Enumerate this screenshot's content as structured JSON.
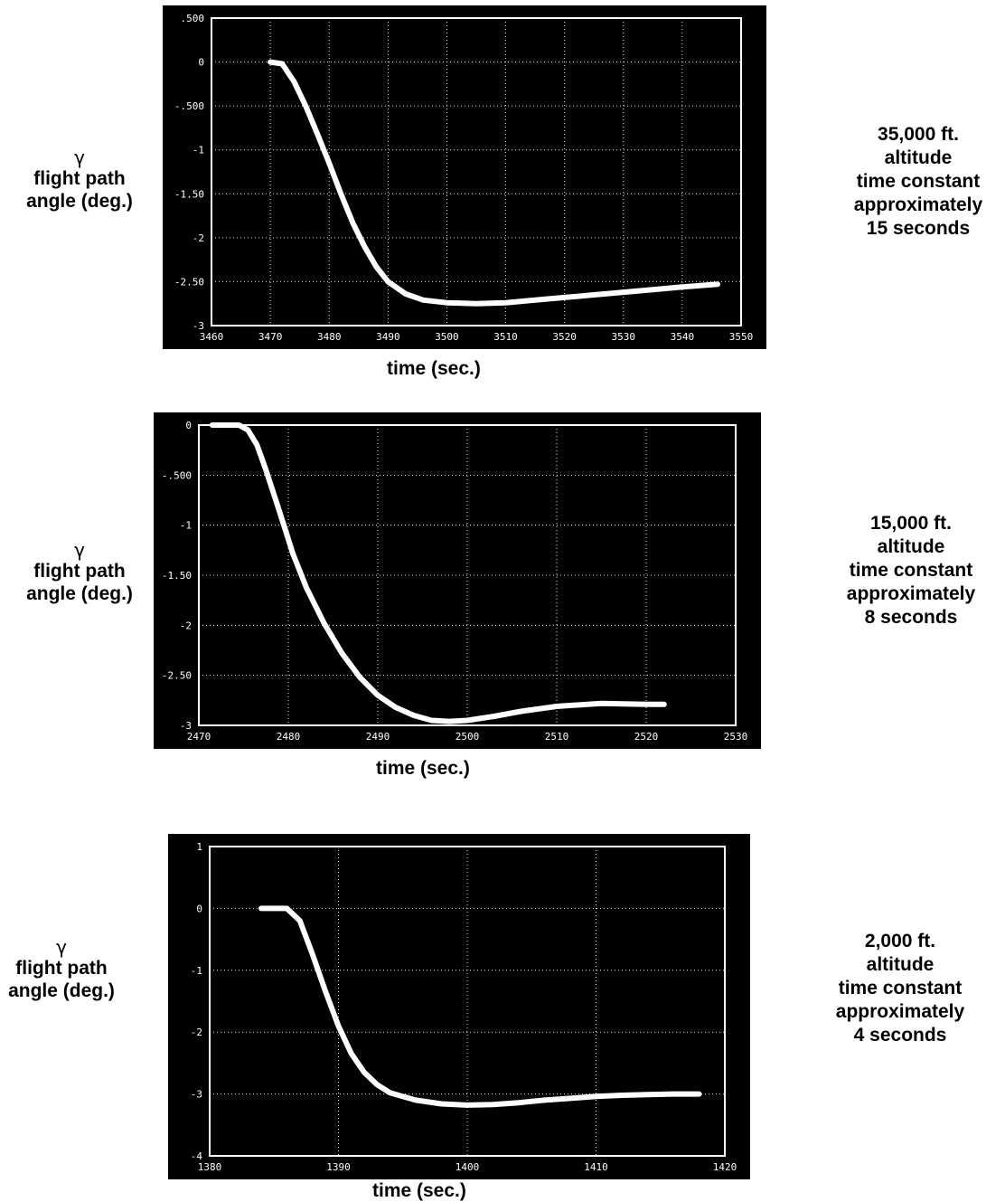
{
  "chart_data": [
    {
      "type": "line",
      "title": "",
      "xlabel": "time (sec.)",
      "ylabel": [
        "γ",
        "flight path",
        "angle (deg.)"
      ],
      "annotation": [
        "35,000 ft.",
        "altitude",
        "time constant",
        "approximately",
        "15 seconds"
      ],
      "xlim": [
        3460,
        3550
      ],
      "ylim": [
        -3,
        0.5
      ],
      "xticks": [
        3460,
        3470,
        3480,
        3490,
        3500,
        3510,
        3520,
        3530,
        3540,
        3550
      ],
      "xtick_labels": [
        "3460",
        "3470",
        "3480",
        "3490",
        "3500",
        "3510",
        "3520",
        "3530",
        "3540",
        "3550"
      ],
      "yticks": [
        0.5,
        0,
        -0.5,
        -1,
        -1.5,
        -2,
        -2.5,
        -3
      ],
      "ytick_labels": [
        ".500",
        "0",
        "-.500",
        "-1",
        "-1.50",
        "-2",
        "-2.50",
        "-3"
      ],
      "grid": true,
      "series": [
        {
          "x": [
            3470,
            3472,
            3474,
            3476,
            3478,
            3480,
            3482,
            3484,
            3486,
            3488,
            3490,
            3493,
            3496,
            3500,
            3505,
            3510,
            3515,
            3520,
            3525,
            3530,
            3535,
            3540,
            3546
          ],
          "y": [
            0,
            -0.02,
            -0.22,
            -0.5,
            -0.82,
            -1.15,
            -1.5,
            -1.83,
            -2.1,
            -2.33,
            -2.5,
            -2.64,
            -2.71,
            -2.74,
            -2.75,
            -2.74,
            -2.71,
            -2.68,
            -2.65,
            -2.62,
            -2.59,
            -2.56,
            -2.53
          ]
        }
      ]
    },
    {
      "type": "line",
      "title": "",
      "xlabel": "time (sec.)",
      "ylabel": [
        "γ",
        "flight path",
        "angle (deg.)"
      ],
      "annotation": [
        "15,000 ft.",
        "altitude",
        "time constant",
        "approximately",
        "8 seconds"
      ],
      "xlim": [
        2470,
        2530
      ],
      "ylim": [
        -3,
        0
      ],
      "xticks": [
        2470,
        2480,
        2490,
        2500,
        2510,
        2520,
        2530
      ],
      "xtick_labels": [
        "2470",
        "2480",
        "2490",
        "2500",
        "2510",
        "2520",
        "2530"
      ],
      "yticks": [
        0,
        -0.5,
        -1,
        -1.5,
        -2,
        -2.5,
        -3
      ],
      "ytick_labels": [
        "0",
        "-.500",
        "-1",
        "-1.50",
        "-2",
        "-2.50",
        "-3"
      ],
      "grid": true,
      "series": [
        {
          "x": [
            2471.5,
            2474.5,
            2475.5,
            2476.5,
            2477.5,
            2478.5,
            2479.5,
            2480.5,
            2482,
            2484,
            2486,
            2488,
            2490,
            2492,
            2494,
            2496,
            2498,
            2500,
            2503,
            2506,
            2510,
            2515,
            2520,
            2522
          ],
          "y": [
            0,
            0,
            -0.05,
            -0.2,
            -0.45,
            -0.72,
            -1.0,
            -1.28,
            -1.62,
            -1.98,
            -2.28,
            -2.52,
            -2.7,
            -2.82,
            -2.9,
            -2.95,
            -2.96,
            -2.95,
            -2.91,
            -2.86,
            -2.81,
            -2.78,
            -2.79,
            -2.79
          ]
        }
      ]
    },
    {
      "type": "line",
      "title": "",
      "xlabel": "time (sec.)",
      "ylabel": [
        "γ",
        "flight path",
        "angle (deg.)"
      ],
      "annotation": [
        "2,000 ft.",
        "altitude",
        "time constant",
        "approximately",
        "4 seconds"
      ],
      "xlim": [
        1380,
        1420
      ],
      "ylim": [
        -4,
        1
      ],
      "xticks": [
        1380,
        1390,
        1400,
        1410,
        1420
      ],
      "xtick_labels": [
        "1380",
        "1390",
        "1400",
        "1410",
        "1420"
      ],
      "yticks": [
        1,
        0,
        -1,
        -2,
        -3,
        -4
      ],
      "ytick_labels": [
        "1",
        "0",
        "-1",
        "-2",
        "-3",
        "-4"
      ],
      "grid": true,
      "series": [
        {
          "x": [
            1384,
            1386,
            1387,
            1388,
            1389,
            1390,
            1391,
            1392,
            1393,
            1394,
            1396,
            1398,
            1400,
            1402,
            1404,
            1406,
            1408,
            1410,
            1412,
            1414,
            1416,
            1418
          ],
          "y": [
            0,
            0,
            -0.2,
            -0.75,
            -1.35,
            -1.9,
            -2.35,
            -2.65,
            -2.85,
            -2.98,
            -3.1,
            -3.16,
            -3.18,
            -3.17,
            -3.14,
            -3.1,
            -3.07,
            -3.04,
            -3.02,
            -3.01,
            -3.0,
            -3.0
          ]
        }
      ]
    }
  ]
}
